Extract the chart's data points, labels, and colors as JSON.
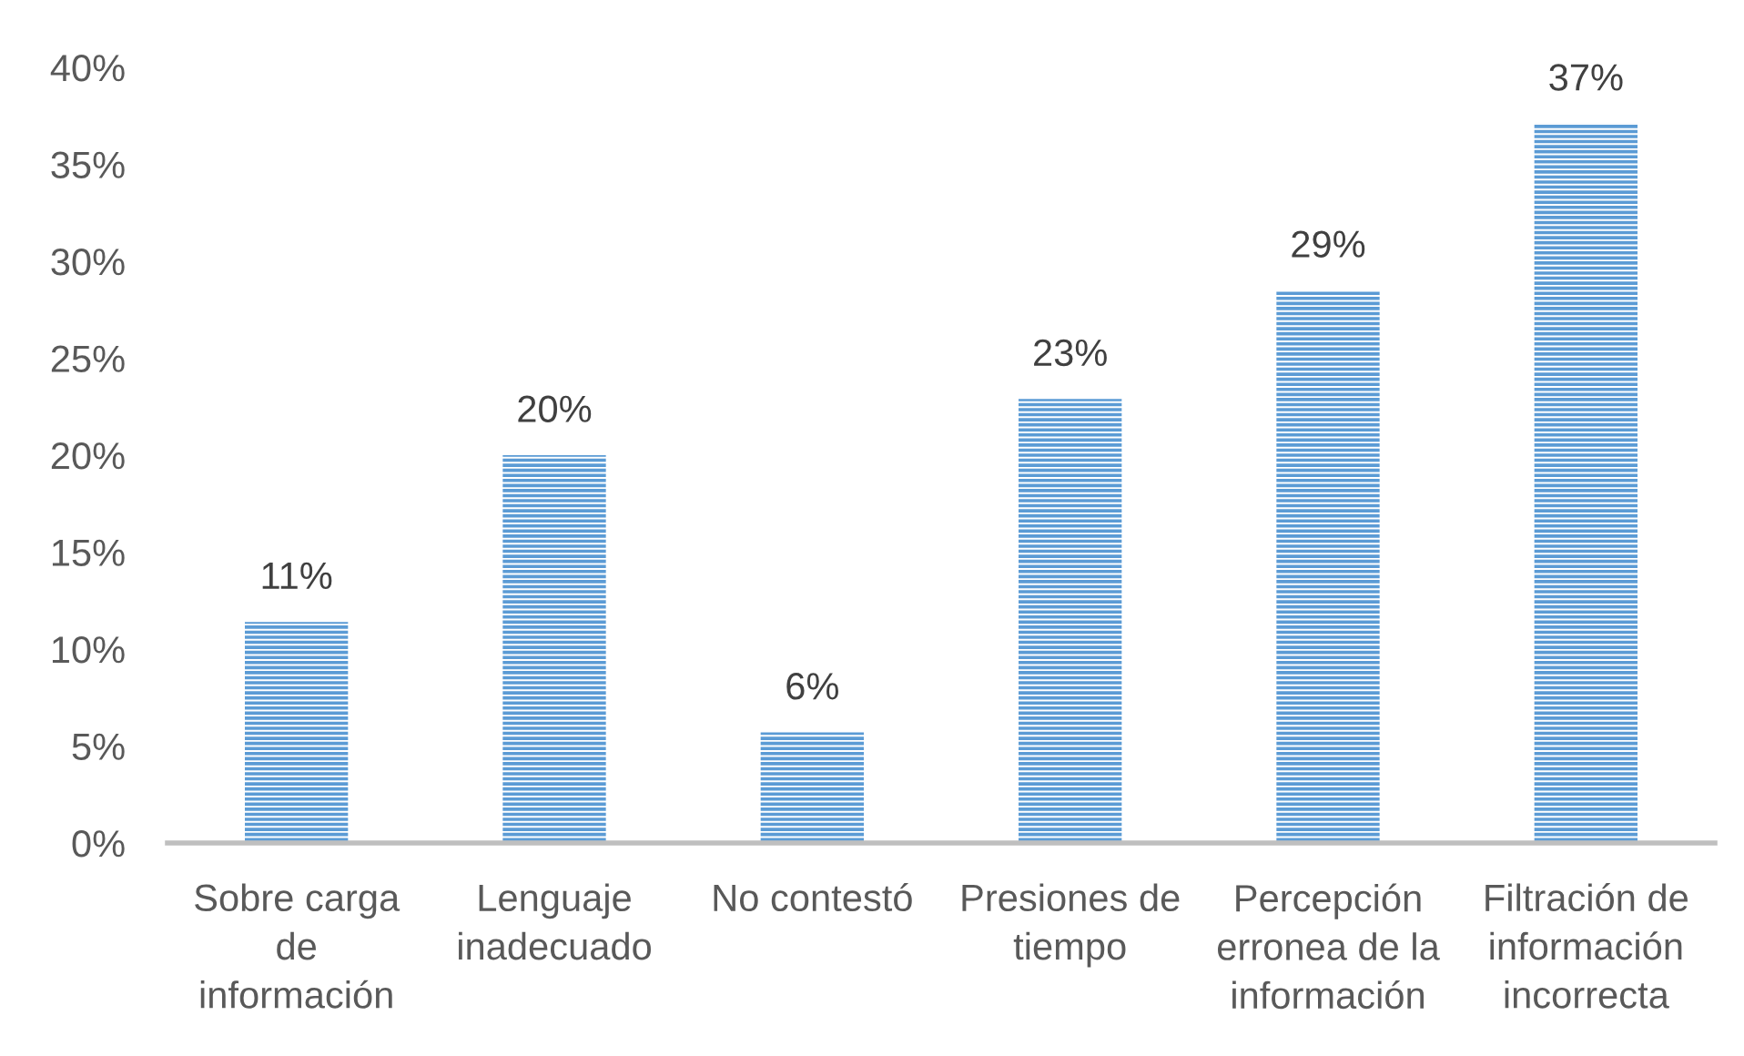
{
  "chart_data": {
    "type": "bar",
    "categories": [
      "Sobre carga\nde\ninformación",
      "Lenguaje\ninadecuado",
      "No contestó",
      "Presiones de\ntiempo",
      "Percepción\nerronea de la\ninformación",
      "Filtración de\ninformación\nincorrecta"
    ],
    "values": [
      11.4,
      20.0,
      5.7,
      22.9,
      28.5,
      37.1
    ],
    "value_labels": [
      "11%",
      "20%",
      "6%",
      "23%",
      "29%",
      "37%"
    ],
    "color": "#5b9bd5",
    "ylim": [
      0,
      40
    ],
    "yticks": [
      {
        "value": 0,
        "label": "0%"
      },
      {
        "value": 5,
        "label": "5%"
      },
      {
        "value": 10,
        "label": "10%"
      },
      {
        "value": 15,
        "label": "15%"
      },
      {
        "value": 20,
        "label": "20%"
      },
      {
        "value": 25,
        "label": "25%"
      },
      {
        "value": 30,
        "label": "30%"
      },
      {
        "value": 35,
        "label": "35%"
      },
      {
        "value": 40,
        "label": "40%"
      }
    ]
  }
}
